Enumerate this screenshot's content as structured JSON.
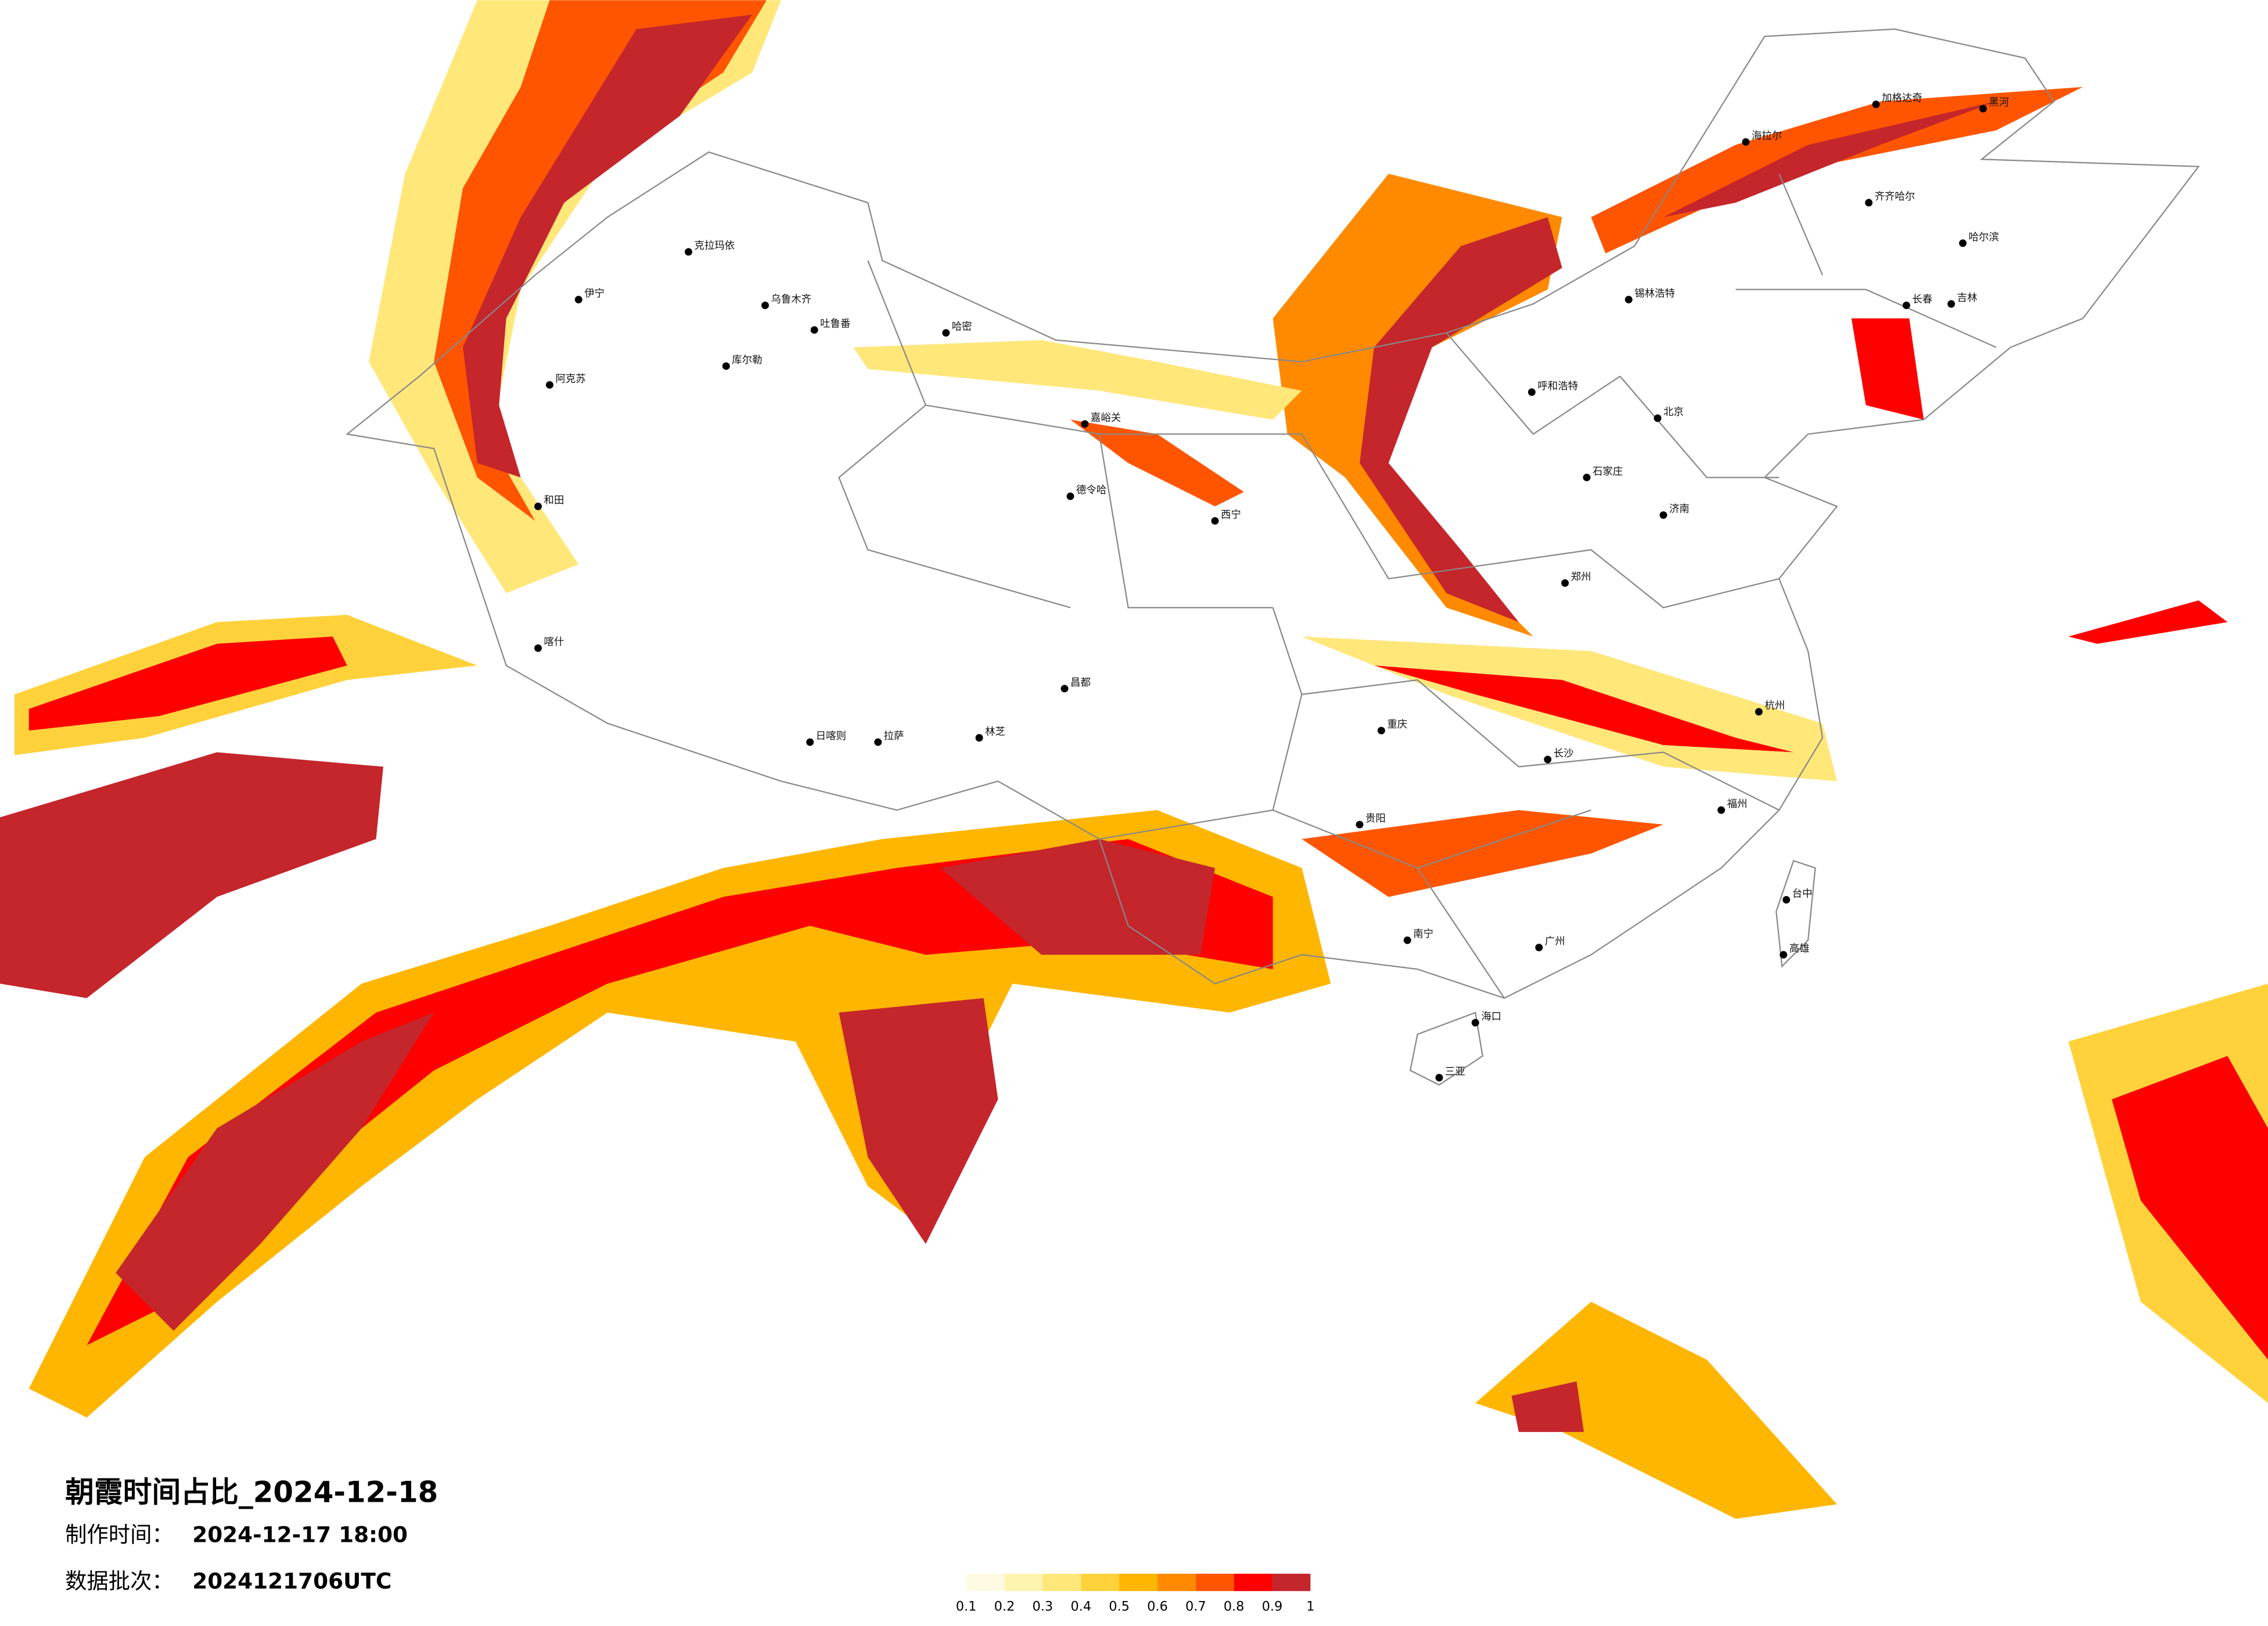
{
  "title": "朝霞时间占比_2024-12-18",
  "made_label": "制作时间：",
  "made_time": "2024-12-17 18:00",
  "batch_label": "数据批次：",
  "batch": "2024121706UTC",
  "legend": {
    "colors": [
      "#fffbe3",
      "#fff3b0",
      "#ffe77a",
      "#ffd23c",
      "#ffb600",
      "#ff8a00",
      "#ff5500",
      "#ff0000",
      "#c4262c"
    ],
    "ticks": [
      0.1,
      0.2,
      0.3,
      0.4,
      0.5,
      0.6,
      0.7,
      0.8,
      0.9,
      1
    ]
  },
  "cities": [
    "克拉玛依",
    "乌鲁木齐",
    "吐鲁番",
    "哈密",
    "库尔勒",
    "阿克苏",
    "和田",
    "喀什",
    "伊宁",
    "嘉峪关",
    "德令哈",
    "呼和浩特",
    "锡林浩特",
    "海拉尔",
    "加格达奇",
    "黑河",
    "齐齐哈尔",
    "哈尔滨",
    "长春",
    "吉林",
    "北京",
    "石家庄",
    "济南",
    "郑州",
    "西宁",
    "重庆",
    "贵阳",
    "南宁",
    "广州",
    "长沙",
    "杭州",
    "福州",
    "台中",
    "高雄",
    "海口",
    "三亚",
    "拉萨",
    "日喀则",
    "林芝",
    "昌都"
  ]
}
